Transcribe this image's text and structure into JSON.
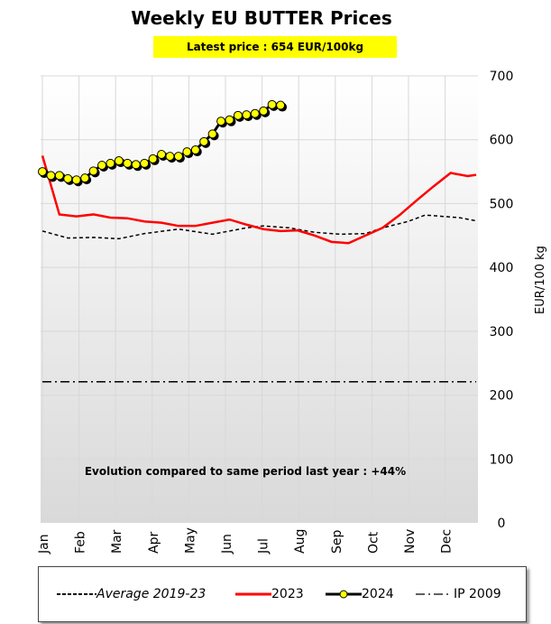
{
  "title": "Weekly EU BUTTER Prices",
  "latest": "Latest price : 654 EUR/100kg",
  "annotation": "Evolution compared to same period last year : +44%",
  "chart_data": {
    "type": "line",
    "title": "Weekly EU BUTTER Prices",
    "ylabel": "EUR/100 kg",
    "ylim": [
      0,
      700
    ],
    "yticks": [
      "0",
      "100",
      "200",
      "300",
      "400",
      "500",
      "600",
      "700"
    ],
    "xlabel": "",
    "months": [
      "Jan",
      "Feb",
      "Mar",
      "Apr",
      "May",
      "Jun",
      "Jul",
      "Aug",
      "Sep",
      "Oct",
      "Nov",
      "Dec"
    ],
    "x_unit": "week",
    "series": [
      {
        "name": "Average 2019-23",
        "color": "#000000",
        "style": "dashed",
        "x": [
          1,
          4,
          7,
          10,
          13,
          17,
          21,
          25,
          27,
          30,
          33,
          36,
          39,
          41,
          44,
          46,
          48,
          50,
          52
        ],
        "values": [
          457,
          446,
          447,
          445,
          453,
          460,
          452,
          462,
          465,
          462,
          455,
          452,
          453,
          462,
          472,
          482,
          480,
          478,
          473
        ]
      },
      {
        "name": "2023",
        "color": "#ff0000",
        "style": "solid",
        "x": [
          1,
          3,
          5,
          7,
          9,
          11,
          13,
          15,
          17,
          19,
          21,
          23,
          25,
          27,
          29,
          31,
          33,
          35,
          37,
          39,
          41,
          43,
          45,
          47,
          49,
          51,
          52
        ],
        "values": [
          575,
          483,
          480,
          483,
          478,
          477,
          472,
          470,
          465,
          465,
          470,
          475,
          467,
          460,
          457,
          458,
          450,
          440,
          438,
          450,
          462,
          482,
          505,
          527,
          548,
          543,
          545
        ]
      },
      {
        "name": "2024",
        "color": "#000000",
        "marker": "yellow-circle",
        "x": [
          1,
          2,
          3,
          4,
          5,
          6,
          7,
          8,
          9,
          10,
          11,
          12,
          13,
          14,
          15,
          16,
          17,
          18,
          19,
          20,
          21,
          22,
          23,
          24,
          25,
          26,
          27,
          28,
          29
        ],
        "values": [
          550,
          544,
          544,
          539,
          537,
          540,
          551,
          560,
          563,
          567,
          563,
          561,
          563,
          570,
          577,
          574,
          574,
          581,
          584,
          597,
          609,
          629,
          631,
          638,
          639,
          641,
          645,
          655,
          654
        ]
      },
      {
        "name": "IP 2009",
        "color": "#000000",
        "style": "dashdot",
        "x": [
          1,
          52
        ],
        "values": [
          221,
          221
        ]
      }
    ]
  }
}
